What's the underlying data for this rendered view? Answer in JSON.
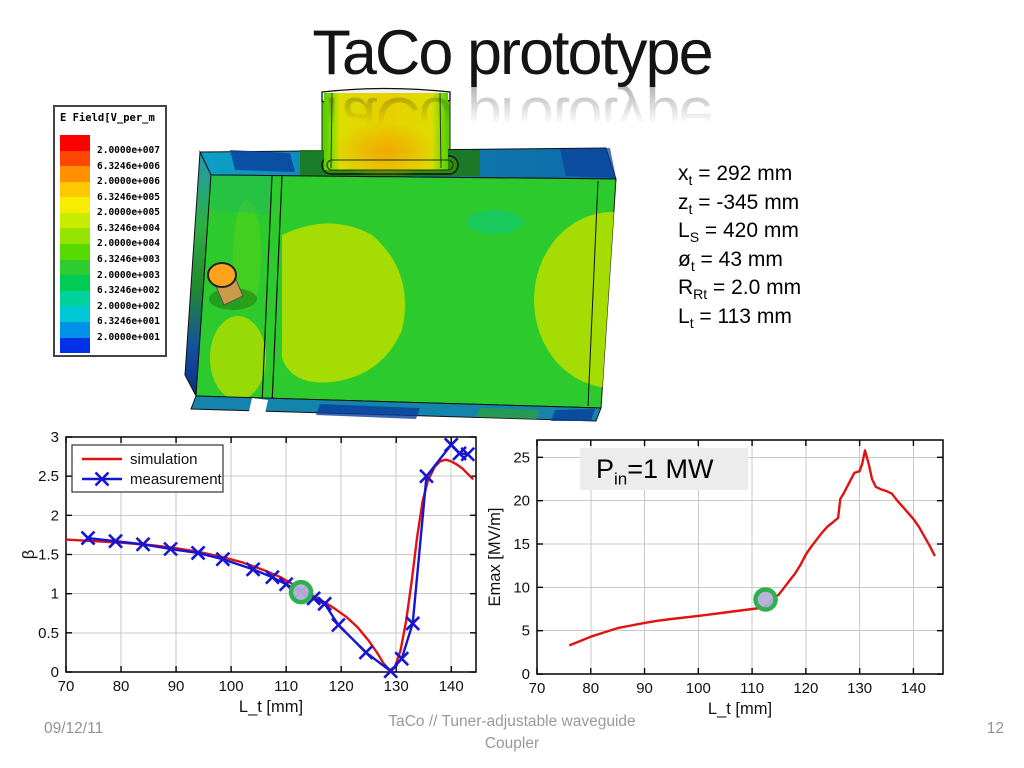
{
  "slide": {
    "title": "TaCo prototype",
    "footer": {
      "date": "09/12/11",
      "center_line1": "TaCo // Tuner-adjustable waveguide",
      "center_line2": "Coupler",
      "page": "12"
    }
  },
  "field_legend": {
    "title": "E Field[V_per_m",
    "entries": [
      "2.0000e+007",
      "6.3246e+006",
      "2.0000e+006",
      "6.3246e+005",
      "2.0000e+005",
      "6.3246e+004",
      "2.0000e+004",
      "6.3246e+003",
      "2.0000e+003",
      "6.3246e+002",
      "2.0000e+002",
      "6.3246e+001",
      "2.0000e+001"
    ],
    "band_colors": [
      "#fd0000",
      "#ff4600",
      "#ff9000",
      "#ffc800",
      "#f8ec00",
      "#c8ec00",
      "#94e400",
      "#56da00",
      "#2ecc2e",
      "#00cc55",
      "#00d29b",
      "#00c8d4",
      "#0092e8",
      "#0030e8"
    ]
  },
  "parameters": [
    {
      "base": "x",
      "sub": "t",
      "rest": " = 292 mm"
    },
    {
      "base": "z",
      "sub": "t",
      "rest": " = -345 mm"
    },
    {
      "base": "L",
      "sub": "S",
      "rest": " = 420 mm"
    },
    {
      "base": "ø",
      "sub": "t",
      "rest": " = 43 mm"
    },
    {
      "base": "R",
      "sub": "Rt",
      "rest": " = 2.0 mm"
    },
    {
      "base": "L",
      "sub": "t",
      "rest": " = 113 mm"
    }
  ],
  "pin_label": {
    "base": "P",
    "sub": "in",
    "rest": "=1 MW"
  },
  "chart_data": [
    {
      "type": "line",
      "title": "",
      "xlabel": "L_t [mm]",
      "ylabel": "β",
      "xlim": [
        70,
        144.5
      ],
      "ylim": [
        0,
        3
      ],
      "xticks": [
        70,
        80,
        90,
        100,
        110,
        120,
        130,
        140
      ],
      "yticks": [
        0,
        0.5,
        1,
        1.5,
        2,
        2.5,
        3
      ],
      "grid": true,
      "legend": {
        "show": true,
        "position": "top-left",
        "entries": [
          "simulation",
          "measurement"
        ]
      },
      "series": [
        {
          "name": "simulation",
          "color": "#e01212",
          "marker": "none",
          "points": [
            [
              70,
              1.69
            ],
            [
              74,
              1.675
            ],
            [
              78,
              1.66
            ],
            [
              82,
              1.64
            ],
            [
              86,
              1.615
            ],
            [
              90,
              1.58
            ],
            [
              94,
              1.535
            ],
            [
              98,
              1.475
            ],
            [
              102,
              1.4
            ],
            [
              106,
              1.3
            ],
            [
              109,
              1.21
            ],
            [
              111,
              1.13
            ],
            [
              113,
              1.04
            ],
            [
              115,
              0.97
            ],
            [
              117,
              0.89
            ],
            [
              119,
              0.8
            ],
            [
              121,
              0.7
            ],
            [
              123,
              0.57
            ],
            [
              125,
              0.4
            ],
            [
              126.5,
              0.25
            ],
            [
              127.8,
              0.1
            ],
            [
              128.8,
              0.02
            ],
            [
              129.8,
              0.07
            ],
            [
              130.8,
              0.28
            ],
            [
              131.8,
              0.65
            ],
            [
              132.8,
              1.15
            ],
            [
              133.8,
              1.72
            ],
            [
              134.8,
              2.18
            ],
            [
              135.8,
              2.45
            ],
            [
              137,
              2.62
            ],
            [
              138,
              2.69
            ],
            [
              139,
              2.71
            ],
            [
              140,
              2.69
            ],
            [
              141,
              2.65
            ],
            [
              142,
              2.6
            ],
            [
              143,
              2.53
            ],
            [
              144,
              2.46
            ]
          ]
        },
        {
          "name": "measurement",
          "color": "#1616d0",
          "marker": "x",
          "points": [
            [
              74,
              1.71
            ],
            [
              79,
              1.67
            ],
            [
              84,
              1.63
            ],
            [
              89,
              1.57
            ],
            [
              94,
              1.52
            ],
            [
              98.5,
              1.44
            ],
            [
              104,
              1.31
            ],
            [
              107.5,
              1.21
            ],
            [
              110,
              1.12
            ],
            [
              112.7,
              1.02
            ],
            [
              115,
              0.94
            ],
            [
              117,
              0.87
            ],
            [
              119.5,
              0.6
            ],
            [
              124.5,
              0.25
            ],
            [
              129,
              0.01
            ],
            [
              131,
              0.17
            ],
            [
              133,
              0.62
            ],
            [
              135.5,
              2.5
            ],
            [
              140,
              2.9
            ],
            [
              141.5,
              2.79
            ],
            [
              143,
              2.78
            ]
          ]
        }
      ],
      "highlight_marker": {
        "x": 112.7,
        "y": 1.02,
        "fill": "#b6aed6",
        "stroke": "#2cb14e"
      }
    },
    {
      "type": "line",
      "title": "",
      "xlabel": "L_t [mm]",
      "ylabel": "Emax [MV/m]",
      "xlim": [
        70,
        145.5
      ],
      "ylim": [
        0,
        27
      ],
      "xticks": [
        70,
        80,
        90,
        100,
        110,
        120,
        130,
        140
      ],
      "yticks": [
        0,
        5,
        10,
        15,
        20,
        25
      ],
      "grid": true,
      "legend": {
        "show": false
      },
      "annotation": "P_in=1 MW",
      "series": [
        {
          "name": "simulation",
          "color": "#e01212",
          "marker": "none",
          "points": [
            [
              76,
              3.3
            ],
            [
              78,
              3.8
            ],
            [
              80,
              4.3
            ],
            [
              82.5,
              4.8
            ],
            [
              85,
              5.3
            ],
            [
              87.5,
              5.6
            ],
            [
              90,
              5.9
            ],
            [
              92.5,
              6.15
            ],
            [
              95,
              6.35
            ],
            [
              100,
              6.7
            ],
            [
              105,
              7.1
            ],
            [
              110,
              7.5
            ],
            [
              112,
              7.65
            ],
            [
              113,
              8.0
            ],
            [
              114,
              8.7
            ],
            [
              115,
              9.2
            ],
            [
              116,
              10.0
            ],
            [
              117,
              10.8
            ],
            [
              118,
              11.6
            ],
            [
              119,
              12.6
            ],
            [
              120,
              13.8
            ],
            [
              121,
              14.7
            ],
            [
              122,
              15.5
            ],
            [
              123,
              16.3
            ],
            [
              124,
              17.0
            ],
            [
              125,
              17.5
            ],
            [
              126,
              18.0
            ],
            [
              126.4,
              20.2
            ],
            [
              127,
              20.8
            ],
            [
              128,
              22.0
            ],
            [
              129,
              23.2
            ],
            [
              130,
              23.4
            ],
            [
              130.5,
              24.3
            ],
            [
              131,
              25.8
            ],
            [
              131.7,
              24.2
            ],
            [
              132.3,
              22.5
            ],
            [
              133,
              21.6
            ],
            [
              134,
              21.3
            ],
            [
              135,
              21.1
            ],
            [
              136,
              20.8
            ],
            [
              137,
              20.0
            ],
            [
              138,
              19.3
            ],
            [
              139,
              18.6
            ],
            [
              140,
              17.9
            ],
            [
              141,
              17.0
            ],
            [
              142,
              15.9
            ],
            [
              143,
              14.8
            ],
            [
              144,
              13.6
            ]
          ]
        }
      ],
      "highlight_marker": {
        "x": 112.5,
        "y": 8.6,
        "fill": "#b6aed6",
        "stroke": "#2cb14e"
      }
    }
  ]
}
